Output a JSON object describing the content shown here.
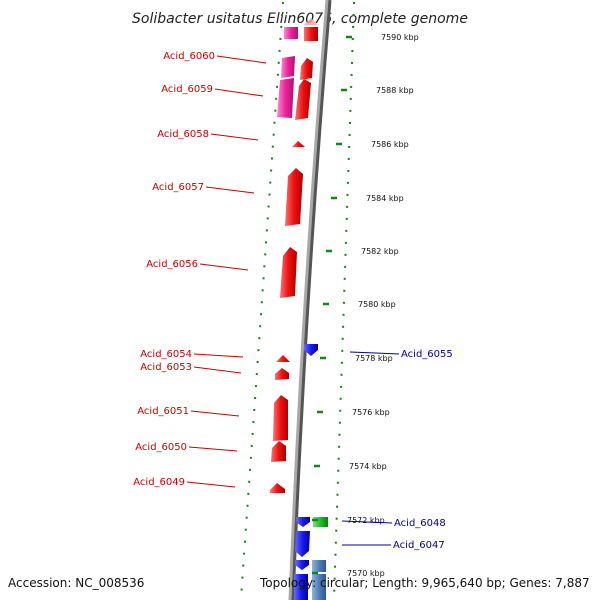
{
  "title": "Solibacter usitatus Ellin6076, complete genome",
  "footer": {
    "accession": "Accession: NC_008536",
    "summary": "Topology: circular; Length: 9,965,640 bp; Genes: 7,887"
  },
  "colors": {
    "reverse_gene": "#ee1111",
    "reverse_gene_pseudo": "#ee2299",
    "forward_gene": "#1a1aee",
    "forward_gene_alt": "#22bb22",
    "forward_gene_blue2": "#4f7fb8",
    "backbone": "#8a8a8a",
    "ticks": "#118811",
    "label_red": "#cc0000",
    "label_blue": "#000099"
  },
  "ticks": [
    {
      "label": "7590 kbp"
    },
    {
      "label": "7588 kbp"
    },
    {
      "label": "7586 kbp"
    },
    {
      "label": "7584 kbp"
    },
    {
      "label": "7582 kbp"
    },
    {
      "label": "7580 kbp"
    },
    {
      "label": "7578 kbp"
    },
    {
      "label": "7576 kbp"
    },
    {
      "label": "7574 kbp"
    },
    {
      "label": "7572 kbp"
    },
    {
      "label": "7570 kbp"
    }
  ],
  "reverse_labels": [
    {
      "text": "Acid_6060"
    },
    {
      "text": "Acid_6059"
    },
    {
      "text": "Acid_6058"
    },
    {
      "text": "Acid_6057"
    },
    {
      "text": "Acid_6056"
    },
    {
      "text": "Acid_6054"
    },
    {
      "text": "Acid_6053"
    },
    {
      "text": "Acid_6051"
    },
    {
      "text": "Acid_6050"
    },
    {
      "text": "Acid_6049"
    }
  ],
  "forward_labels": [
    {
      "text": "Acid_6055"
    },
    {
      "text": "Acid_6048"
    },
    {
      "text": "Acid_6047"
    }
  ]
}
